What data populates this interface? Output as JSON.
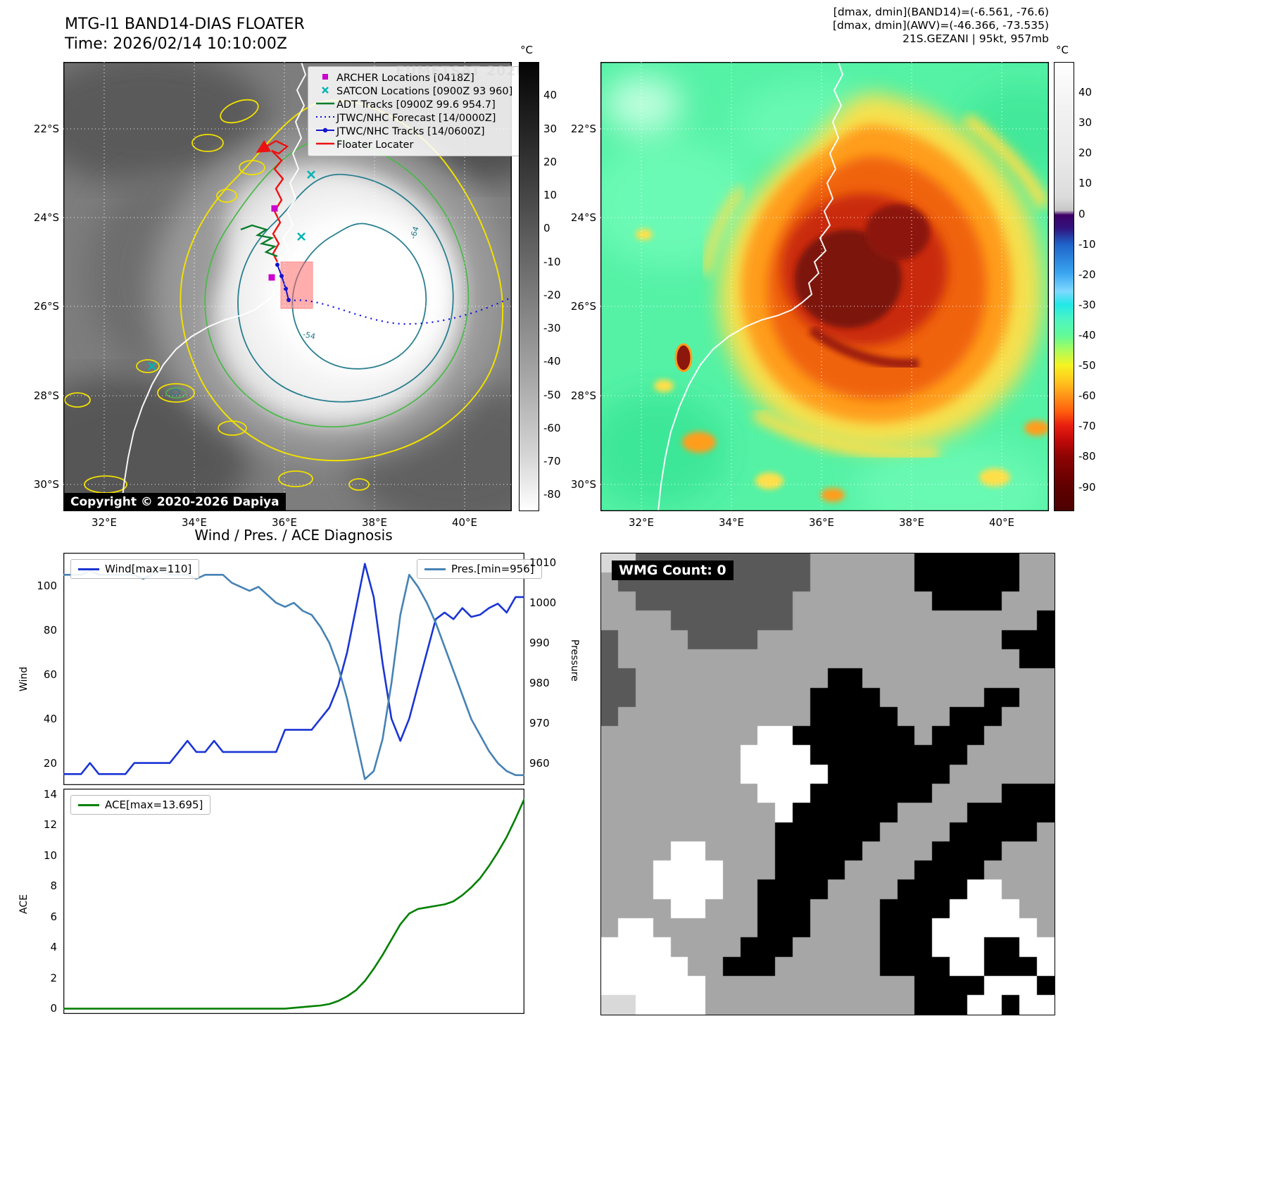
{
  "band14_panel": {
    "title": "MTG-I1 BAND14-DIAS FLOATER",
    "time": "Time: 2026/02/14 10:10:00Z",
    "watermark": "EUMETSAT 2026",
    "copyright": "Copyright © 2020-2026 Dapiya",
    "contour_labels": [
      "-64",
      "-54"
    ],
    "legend": [
      {
        "label": "ARCHER Locations [0418Z]",
        "marker": "square",
        "color": "#cc00cc"
      },
      {
        "label": "SATCON Locations [0900Z 93 960]",
        "marker": "x",
        "color": "#00b3b3"
      },
      {
        "label": "ADT Tracks [0900Z 99.6 954.7]",
        "marker": "line",
        "color": "#0a7d2c"
      },
      {
        "label": "JTWC/NHC Forecast [14/0000Z]",
        "marker": "dotted",
        "color": "#1111dd"
      },
      {
        "label": "JTWC/NHC Tracks [14/0600Z]",
        "marker": "line-dot",
        "color": "#1515cc"
      },
      {
        "label": "Floater Locater",
        "marker": "line",
        "color": "#ee1111"
      }
    ],
    "colorbar": {
      "unit": "°C",
      "ticks": [
        40,
        30,
        20,
        10,
        0,
        -10,
        -20,
        -30,
        -40,
        -50,
        -60,
        -70,
        -80
      ],
      "vmax": 50,
      "vmin": -85
    }
  },
  "awv_panel": {
    "header_lines": [
      "[dmax, dmin](BAND14)=(-6.561, -76.6)",
      "[dmax, dmin](AWV)=(-46.366, -73.535)",
      "21S.GEZANI | 95kt, 957mb"
    ],
    "colorbar": {
      "unit": "°C",
      "ticks": [
        40,
        30,
        20,
        10,
        0,
        -10,
        -20,
        -30,
        -40,
        -50,
        -60,
        -70,
        -80,
        -90
      ],
      "vmax": 50,
      "vmin": -98
    }
  },
  "geo": {
    "lat_ticks": [
      "22°S",
      "24°S",
      "26°S",
      "28°S",
      "30°S"
    ],
    "lon_ticks": [
      "32°E",
      "34°E",
      "36°E",
      "38°E",
      "40°E"
    ]
  },
  "diagnosis": {
    "title": "Wind / Pres. / ACE Diagnosis",
    "wind_legend": "Wind[max=110]",
    "pres_legend": "Pres.[min=956]",
    "ace_legend": "ACE[max=13.695]",
    "wind_axis_label": "Wind",
    "pres_axis_label": "Pressure",
    "ace_axis_label": "ACE"
  },
  "chart_data": [
    {
      "type": "line",
      "title": "Wind / Pres. / ACE Diagnosis",
      "legend_position": "upper-left and upper-right",
      "left_axis": {
        "label": "Wind",
        "ticks": [
          20,
          40,
          60,
          80,
          100
        ],
        "ylim": [
          10,
          115
        ]
      },
      "right_axis": {
        "label": "Pressure",
        "ticks": [
          960,
          970,
          980,
          990,
          1000,
          1010
        ],
        "ylim": [
          954.5,
          1012.5
        ]
      },
      "series": [
        {
          "name": "Wind[max=110]",
          "axis": "left",
          "color": "#1a35d4",
          "values": [
            15,
            15,
            15,
            20,
            15,
            15,
            15,
            15,
            20,
            20,
            20,
            20,
            20,
            25,
            30,
            25,
            25,
            30,
            25,
            25,
            25,
            25,
            25,
            25,
            25,
            35,
            35,
            35,
            35,
            40,
            45,
            55,
            70,
            90,
            110,
            95,
            65,
            40,
            30,
            40,
            55,
            70,
            85,
            88,
            85,
            90,
            86,
            87,
            90,
            92,
            88,
            95,
            95
          ]
        },
        {
          "name": "Pres.[min=956]",
          "axis": "right",
          "color": "#4682b4",
          "values": [
            1007,
            1007,
            1007,
            1008,
            1007,
            1007,
            1007,
            1007,
            1007,
            1006,
            1007,
            1008,
            1007,
            1007,
            1007,
            1006,
            1007,
            1007,
            1007,
            1005,
            1004,
            1003,
            1004,
            1002,
            1000,
            999,
            1000,
            998,
            997,
            994,
            990,
            984,
            976,
            966,
            956,
            958,
            966,
            980,
            997,
            1007,
            1004,
            1000,
            995,
            989,
            983,
            977,
            971,
            967,
            963,
            960,
            958,
            957,
            957
          ]
        }
      ]
    },
    {
      "type": "line",
      "left_axis": {
        "label": "ACE",
        "ticks": [
          0,
          2,
          4,
          6,
          8,
          10,
          12,
          14
        ],
        "ylim": [
          -0.35,
          14.35
        ]
      },
      "series": [
        {
          "name": "ACE[max=13.695]",
          "axis": "left",
          "color": "#008000",
          "values": [
            0,
            0,
            0,
            0,
            0,
            0,
            0,
            0,
            0,
            0,
            0,
            0,
            0,
            0,
            0,
            0,
            0,
            0,
            0,
            0,
            0,
            0,
            0,
            0,
            0,
            0,
            0.05,
            0.1,
            0.15,
            0.2,
            0.3,
            0.5,
            0.8,
            1.2,
            1.8,
            2.6,
            3.5,
            4.5,
            5.5,
            6.2,
            6.5,
            6.6,
            6.7,
            6.8,
            7.0,
            7.4,
            7.9,
            8.5,
            9.3,
            10.2,
            11.2,
            12.4,
            13.695
          ]
        }
      ]
    }
  ],
  "wmg": {
    "label": "WMG Count: 0",
    "palette": {
      ".": "#ffffff",
      "l": "#d9d9d9",
      "g": "#a6a6a6",
      "d": "#595959",
      "b": "#000000"
    },
    "grid": [
      "llddddddddddggggggbbbbbbgg",
      "gdddddddddddggggggbbbbbbgg",
      "ggdddddddddggggggggbbbbggg",
      "ggggdddddddggggggggggggggb",
      "dggggddddggggggggggggggbbb",
      "dgggggggggggggggggggggggbb",
      "ddgggggggggggbbggggggggggg",
      "ddggggggggggbbbbggggggbbgg",
      "dgggggggggggbbbbbgggbbbggg",
      "ggggggggg..bbbbbbbgbbbgggg",
      "gggggggg....bbbbbbbbbggggg",
      "gggggggg.....bbbbbbbgggggg",
      "ggggggggg...bbbbbbbggggbbb",
      "gggggggggg.bbbbbbggggbbbbb",
      "ggggggggggbbbbbbggggbbbbbg",
      "gggg..ggggbbbbbggggbbbbggg",
      "ggg....gggbbbbggggbbbbgggg",
      "ggg....ggbbbbggggbbbb..ggg",
      "gggg..gggbbbggggbbbb....gg",
      "g..ggggggbbbggggbbb......g",
      "....ggggbbbgggggbbb...bb..",
      ".....ggbbbggggggbbbb..bbb.",
      "......ggggggggggggbbbb...b",
      "ll....ggggggggggggbbb..b.."
    ]
  }
}
